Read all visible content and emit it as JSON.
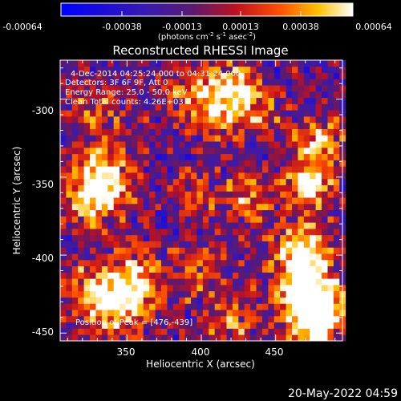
{
  "chart_data": {
    "type": "heatmap",
    "title": "Reconstructed RHESSI Image",
    "xlabel": "Heliocentric X (arcsec)",
    "ylabel": "Heliocentric Y (arcsec)",
    "xlim": [
      305,
      495
    ],
    "ylim": [
      -455,
      -275
    ],
    "x_ticks": [
      350,
      400,
      450
    ],
    "y_ticks": [
      -300,
      -350,
      -400,
      -450
    ],
    "colorbar": {
      "min": -0.00064,
      "max": 0.00064,
      "ticks": [
        "-0.00064",
        "-0.00038",
        "-0.00013",
        "0.00013",
        "0.00038",
        "0.00064"
      ],
      "label_main": "(photons cm",
      "label_sup1": "-2",
      "label_mid1": " s",
      "label_sup2": "-1",
      "label_mid2": " asec",
      "label_sup3": "-2",
      "label_end": ")"
    },
    "annotations": {
      "time_range": "4-Dec-2014 04:25:24.000 to 04:31:24.000",
      "detectors": "Detectors: 3F 6F 9F, Att 0",
      "energy": "Energy Range: 25.0 - 50.0 keV",
      "clean": "Clean     Total counts: 4.26E+03",
      "peak": "Position of Peak = [476,-439]"
    },
    "peak": [
      476,
      -439
    ],
    "grid": false,
    "colormap": "blue-purple-red-yellow-white"
  },
  "footer": {
    "timestamp": "20-May-2022 04:59"
  }
}
